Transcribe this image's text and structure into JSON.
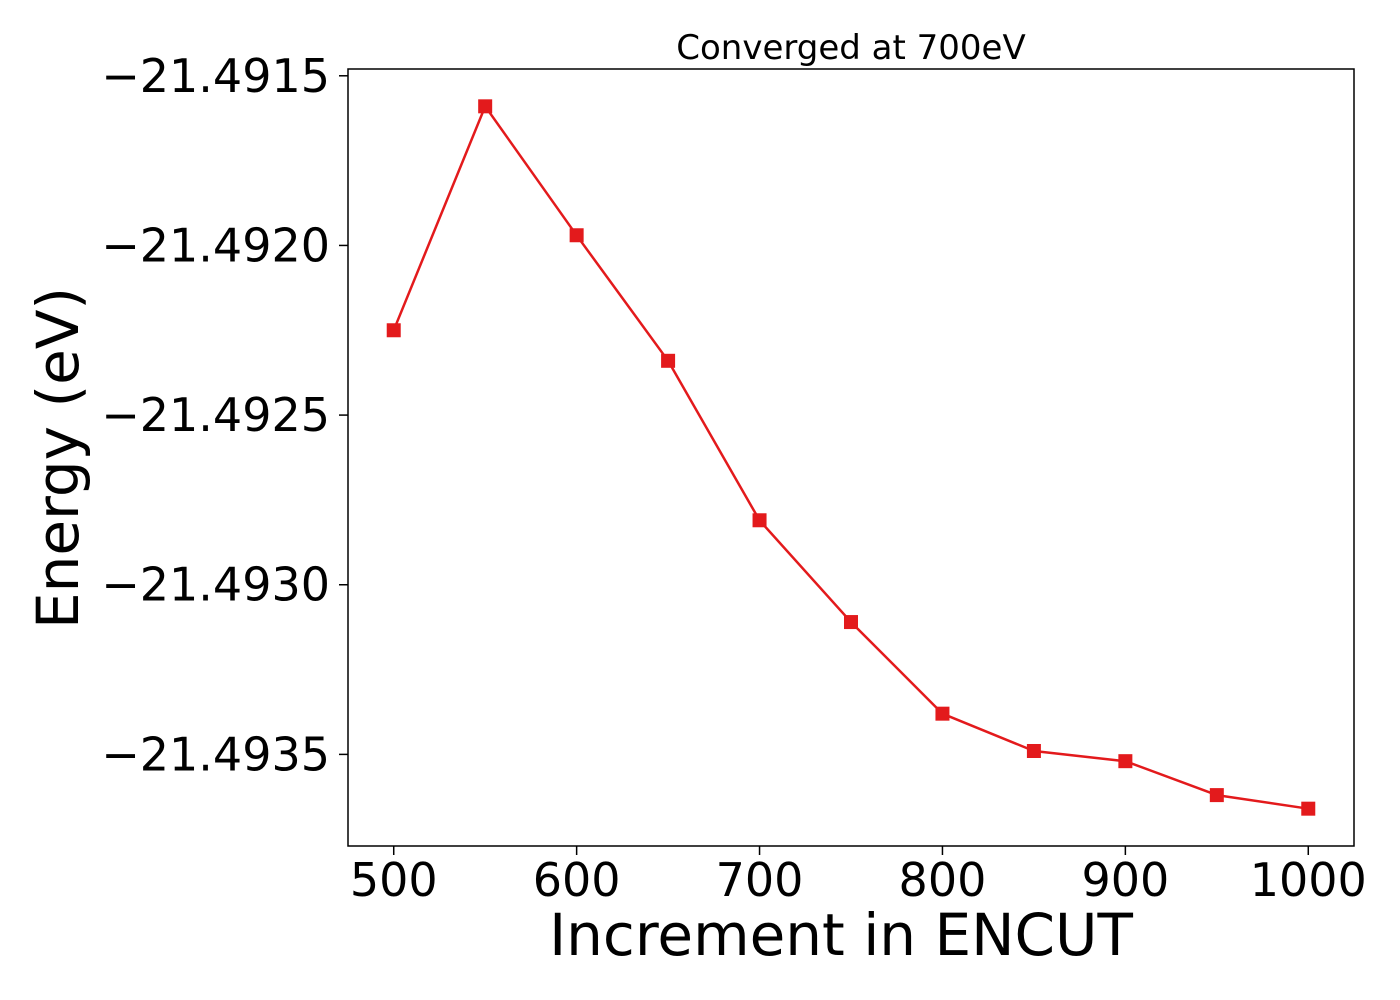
{
  "chart_data": {
    "type": "line",
    "title": "Converged at 700eV",
    "xlabel": "Increment in ENCUT",
    "ylabel": "Energy (eV)",
    "x": [
      500,
      550,
      600,
      650,
      700,
      750,
      800,
      850,
      900,
      950,
      1000
    ],
    "series": [
      {
        "values": [
          -21.49225,
          -21.49159,
          -21.49197,
          -21.49234,
          -21.49281,
          -21.49311,
          -21.49338,
          -21.49349,
          -21.49352,
          -21.49362,
          -21.49366
        ],
        "color": "#e31a1c",
        "marker": "square"
      }
    ],
    "xlim": [
      475,
      1025
    ],
    "ylim": [
      -21.49377,
      -21.49148
    ],
    "xticks": [
      500,
      600,
      700,
      800,
      900,
      1000
    ],
    "xtick_labels": [
      "500",
      "600",
      "700",
      "800",
      "900",
      "1000"
    ],
    "yticks": [
      -21.4915,
      -21.492,
      -21.4925,
      -21.493,
      -21.4935
    ],
    "ytick_labels": [
      "−21.4915",
      "−21.4920",
      "−21.4925",
      "−21.4930",
      "−21.4935"
    ],
    "grid": false,
    "legend": "none"
  }
}
